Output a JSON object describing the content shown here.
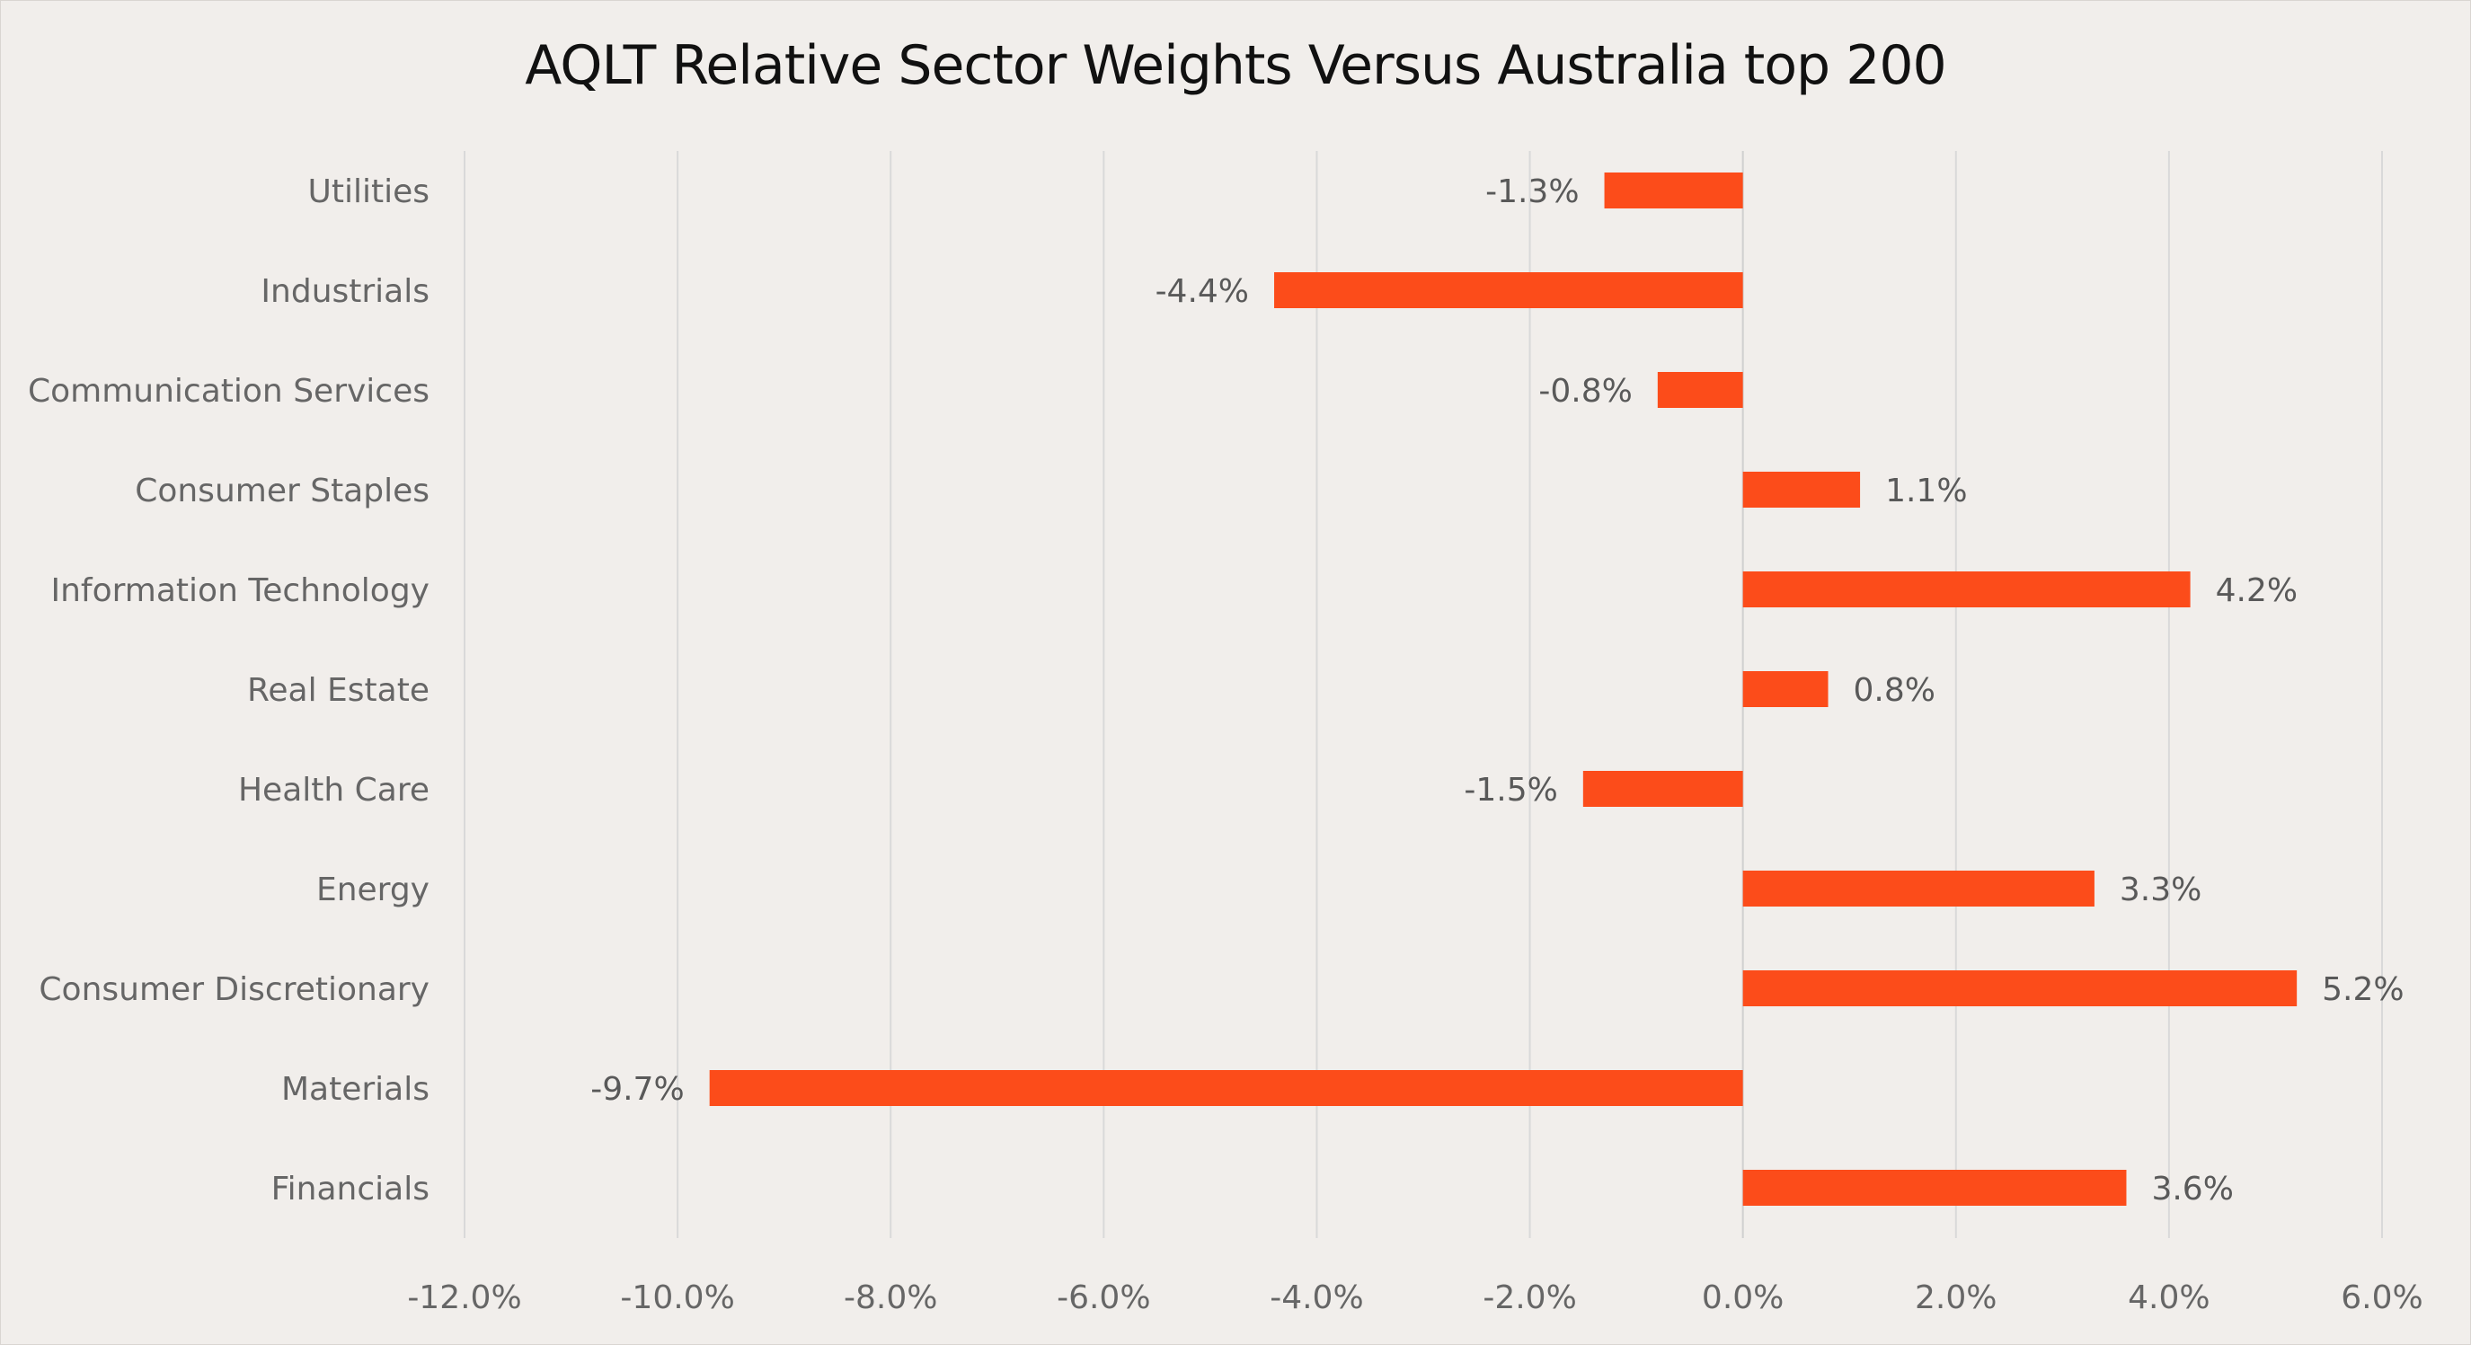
{
  "chart_data": {
    "type": "bar",
    "orientation": "horizontal",
    "title": "AQLT Relative Sector Weights Versus Australia top 200",
    "xlabel": "",
    "ylabel": "",
    "categories": [
      "Utilities",
      "Industrials",
      "Communication Services",
      "Consumer Staples",
      "Information Technology",
      "Real Estate",
      "Health Care",
      "Energy",
      "Consumer Discretionary",
      "Materials",
      "Financials"
    ],
    "values": [
      -1.3,
      -4.4,
      -0.8,
      1.1,
      4.2,
      0.8,
      -1.5,
      3.3,
      5.2,
      -9.7,
      3.6
    ],
    "data_labels": [
      "-1.3%",
      "-4.4%",
      "-0.8%",
      "1.1%",
      "4.2%",
      "0.8%",
      "-1.5%",
      "3.3%",
      "5.2%",
      "-9.7%",
      "3.6%"
    ],
    "xlim": [
      -12.0,
      6.0
    ],
    "xticks": [
      -12.0,
      -10.0,
      -8.0,
      -6.0,
      -4.0,
      -2.0,
      0.0,
      2.0,
      4.0,
      6.0
    ],
    "xtick_labels": [
      "-12.0%",
      "-10.0%",
      "-8.0%",
      "-6.0%",
      "-4.0%",
      "-2.0%",
      "0.0%",
      "2.0%",
      "4.0%",
      "6.0%"
    ],
    "grid": true,
    "legend": "none",
    "bar_color": "#fc4c1a",
    "grid_color": "#d9d9d9",
    "background_color": "#f1eeeb"
  }
}
